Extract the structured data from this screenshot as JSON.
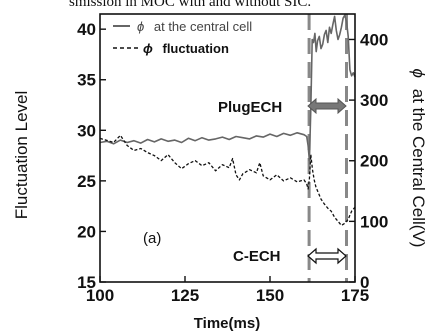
{
  "caption": "smission in MOC with and without SIC.",
  "chart_data": {
    "type": "line",
    "xlabel": "Time(ms)",
    "ylabel_left": "Fluctuation Level",
    "ylabel_right": "ϕ  at the Central Cell(V)",
    "ylabel_right_symbol": "ϕ",
    "ylabel_right_text": "at the Central Cell(V)",
    "xlim": [
      100,
      175
    ],
    "ylim_left": [
      15,
      41.5
    ],
    "ylim_right": [
      0,
      442
    ],
    "x_ticks": [
      "100",
      "125",
      "150",
      "175"
    ],
    "x_tick_values": [
      100,
      125,
      150,
      175
    ],
    "y_left_ticks": [
      "15",
      "20",
      "25",
      "30",
      "35",
      "40"
    ],
    "y_left_tick_values": [
      15,
      20,
      25,
      30,
      35,
      40
    ],
    "y_right_ticks": [
      "0",
      "100",
      "200",
      "300",
      "400"
    ],
    "y_right_tick_values": [
      0,
      100,
      200,
      300,
      400
    ],
    "legend": [
      {
        "symbol": "ϕ",
        "label": "at the  central cell",
        "style": "solid"
      },
      {
        "symbol": "ϕ",
        "label": "fluctuation",
        "style": "dashed"
      }
    ],
    "panel_label": "(a)",
    "annotations": [
      {
        "text": "PlugECH",
        "x_start": 161.5,
        "x_end": 172.5,
        "arrow": "double-filled"
      },
      {
        "text": "C-ECH",
        "x_start": 161.5,
        "x_end": 172.5,
        "arrow": "double-open"
      }
    ],
    "vlines": [
      161.5,
      172.5
    ],
    "series": [
      {
        "name": "ϕ  at the  central cell",
        "axis": "right",
        "x": [
          100,
          102,
          104,
          106,
          108,
          110,
          112,
          114,
          116,
          118,
          120,
          122,
          124,
          126,
          128,
          130,
          132,
          134,
          136,
          138,
          140,
          142,
          144,
          146,
          148,
          150,
          152,
          154,
          156,
          158,
          160,
          160.8,
          161.2,
          161.6,
          162,
          162.4,
          162.8,
          163.2,
          163.6,
          164,
          164.5,
          165,
          165.5,
          166,
          166.5,
          167,
          167.5,
          168,
          168.5,
          169,
          169.5,
          170,
          170.5,
          171,
          171.5,
          172,
          172.5,
          173,
          173.5,
          174,
          174.5,
          175
        ],
        "y": [
          230,
          232,
          228,
          234,
          230,
          233,
          229,
          235,
          231,
          236,
          232,
          234,
          230,
          237,
          233,
          238,
          234,
          236,
          239,
          235,
          240,
          238,
          236,
          241,
          239,
          244,
          240,
          245,
          242,
          246,
          243,
          240,
          225,
          200,
          285,
          400,
          395,
          410,
          380,
          398,
          405,
          385,
          392,
          408,
          415,
          395,
          420,
          410,
          425,
          438,
          415,
          400,
          408,
          420,
          435,
          440,
          430,
          405,
          350,
          340,
          345,
          338
        ]
      },
      {
        "name": "ϕ fluctuation",
        "axis": "left",
        "x": [
          100,
          102,
          104,
          106,
          108,
          110,
          112,
          114,
          116,
          118,
          120,
          122,
          124,
          126,
          128,
          130,
          132,
          134,
          136,
          138,
          139,
          140,
          141,
          142,
          144,
          146,
          147,
          148,
          150,
          152,
          154,
          156,
          158,
          160,
          160.8,
          161.2,
          161.6,
          162,
          162.5,
          163,
          163.5,
          164,
          165,
          166,
          167,
          168,
          169,
          170,
          171,
          172,
          173,
          174,
          175
        ],
        "y": [
          29.2,
          29.0,
          28.8,
          29.5,
          28.5,
          28.0,
          28.2,
          27.8,
          27.5,
          27.0,
          27.6,
          26.8,
          26.2,
          26.7,
          27.0,
          26.5,
          26.8,
          26.0,
          26.6,
          26.3,
          27.2,
          25.6,
          25.1,
          25.7,
          26.1,
          25.8,
          26.8,
          25.5,
          25.1,
          25.6,
          25.0,
          25.3,
          24.9,
          25.1,
          24.7,
          24.2,
          25.2,
          27.6,
          26.1,
          25.1,
          24.4,
          24.0,
          23.2,
          22.7,
          22.3,
          22.0,
          21.4,
          21.0,
          20.6,
          20.8,
          21.2,
          22.0,
          22.4
        ]
      }
    ]
  }
}
